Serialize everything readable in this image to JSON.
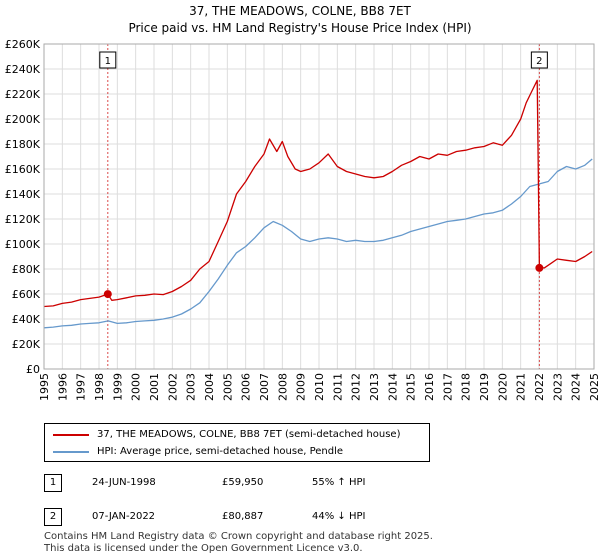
{
  "title": "37, THE MEADOWS, COLNE, BB8 7ET",
  "subtitle": "Price paid vs. HM Land Registry's House Price Index (HPI)",
  "legend": {
    "property_label": "37, THE MEADOWS, COLNE, BB8 7ET (semi-detached house)",
    "hpi_label": "HPI: Average price, semi-detached house, Pendle"
  },
  "transactions": [
    {
      "badge": "1",
      "date": "24-JUN-1998",
      "price": "£59,950",
      "hpi_change": "55% ↑ HPI"
    },
    {
      "badge": "2",
      "date": "07-JAN-2022",
      "price": "£80,887",
      "hpi_change": "44% ↓ HPI"
    }
  ],
  "footer": {
    "line1": "Contains HM Land Registry data © Crown copyright and database right 2025.",
    "line2": "This data is licensed under the Open Government Licence v3.0."
  },
  "colors": {
    "property": "#cc0000",
    "hpi": "#6699cc",
    "grid": "#dddddd",
    "plot_bg": "#ffffff",
    "marker_line": "#cc0000"
  },
  "chart_data": {
    "type": "line",
    "title": "37, THE MEADOWS, COLNE, BB8 7ET",
    "xlabel": "",
    "ylabel": "",
    "xlim": [
      1995,
      2025
    ],
    "ylim": [
      0,
      260000
    ],
    "y_ticks": [
      0,
      20000,
      40000,
      60000,
      80000,
      100000,
      120000,
      140000,
      160000,
      180000,
      200000,
      220000,
      240000,
      260000
    ],
    "y_tick_labels": [
      "£0",
      "£20K",
      "£40K",
      "£60K",
      "£80K",
      "£100K",
      "£120K",
      "£140K",
      "£160K",
      "£180K",
      "£200K",
      "£220K",
      "£240K",
      "£260K"
    ],
    "x_ticks": [
      1995,
      1996,
      1997,
      1998,
      1999,
      2000,
      2001,
      2002,
      2003,
      2004,
      2005,
      2006,
      2007,
      2008,
      2009,
      2010,
      2011,
      2012,
      2013,
      2014,
      2015,
      2016,
      2017,
      2018,
      2019,
      2020,
      2021,
      2022,
      2023,
      2024,
      2025
    ],
    "x_tick_labels": [
      "1995",
      "1996",
      "1997",
      "1998",
      "1999",
      "2000",
      "2001",
      "2002",
      "2003",
      "2004",
      "2005",
      "2006",
      "2007",
      "2008",
      "2009",
      "2010",
      "2011",
      "2012",
      "2013",
      "2014",
      "2015",
      "2016",
      "2017",
      "2018",
      "2019",
      "2020",
      "2021",
      "2022",
      "2023",
      "2024",
      "2025"
    ],
    "grid": true,
    "legend_position": "below",
    "series": [
      {
        "name": "37, THE MEADOWS, COLNE, BB8 7ET (semi-detached house)",
        "color": "#cc0000",
        "x": [
          1995.0,
          1995.5,
          1996.0,
          1996.5,
          1997.0,
          1997.5,
          1998.0,
          1998.48,
          1998.7,
          1999.0,
          1999.5,
          2000.0,
          2000.5,
          2001.0,
          2001.5,
          2002.0,
          2002.5,
          2003.0,
          2003.5,
          2004.0,
          2004.5,
          2005.0,
          2005.5,
          2006.0,
          2006.5,
          2007.0,
          2007.3,
          2007.7,
          2008.0,
          2008.3,
          2008.7,
          2009.0,
          2009.5,
          2010.0,
          2010.5,
          2011.0,
          2011.5,
          2012.0,
          2012.5,
          2013.0,
          2013.5,
          2014.0,
          2014.5,
          2015.0,
          2015.5,
          2016.0,
          2016.5,
          2017.0,
          2017.5,
          2018.0,
          2018.5,
          2019.0,
          2019.5,
          2020.0,
          2020.5,
          2021.0,
          2021.3,
          2021.6,
          2021.9,
          2022.02,
          2022.3,
          2022.7,
          2023.0,
          2023.5,
          2024.0,
          2024.5,
          2024.9
        ],
        "y": [
          50000,
          50500,
          52500,
          53500,
          55500,
          56500,
          57500,
          59950,
          55000,
          55500,
          57000,
          58500,
          59000,
          60000,
          59500,
          62000,
          66000,
          71000,
          80000,
          86000,
          102000,
          118000,
          140000,
          150000,
          162000,
          172000,
          184000,
          174000,
          182000,
          170000,
          160000,
          158000,
          160000,
          165000,
          172000,
          162000,
          158000,
          156000,
          154000,
          153000,
          154000,
          158000,
          163000,
          166000,
          170000,
          168000,
          172000,
          171000,
          174000,
          175000,
          177000,
          178000,
          181000,
          179000,
          187000,
          200000,
          213000,
          222000,
          231000,
          80887,
          81000,
          85000,
          88000,
          87000,
          86000,
          90000,
          94000
        ]
      },
      {
        "name": "HPI: Average price, semi-detached house, Pendle",
        "color": "#6699cc",
        "x": [
          1995.0,
          1995.5,
          1996.0,
          1996.5,
          1997.0,
          1997.5,
          1998.0,
          1998.5,
          1999.0,
          1999.5,
          2000.0,
          2000.5,
          2001.0,
          2001.5,
          2002.0,
          2002.5,
          2003.0,
          2003.5,
          2004.0,
          2004.5,
          2005.0,
          2005.5,
          2006.0,
          2006.5,
          2007.0,
          2007.5,
          2008.0,
          2008.5,
          2009.0,
          2009.5,
          2010.0,
          2010.5,
          2011.0,
          2011.5,
          2012.0,
          2012.5,
          2013.0,
          2013.5,
          2014.0,
          2014.5,
          2015.0,
          2015.5,
          2016.0,
          2016.5,
          2017.0,
          2017.5,
          2018.0,
          2018.5,
          2019.0,
          2019.5,
          2020.0,
          2020.5,
          2021.0,
          2021.5,
          2022.0,
          2022.5,
          2023.0,
          2023.5,
          2024.0,
          2024.5,
          2024.9
        ],
        "y": [
          33000,
          33500,
          34500,
          35000,
          36000,
          36500,
          37000,
          38500,
          36500,
          37000,
          38000,
          38500,
          39000,
          40000,
          41500,
          44000,
          48000,
          53000,
          62000,
          72000,
          83000,
          93000,
          98000,
          105000,
          113000,
          118000,
          115000,
          110000,
          104000,
          102000,
          104000,
          105000,
          104000,
          102000,
          103000,
          102000,
          102000,
          103000,
          105000,
          107000,
          110000,
          112000,
          114000,
          116000,
          118000,
          119000,
          120000,
          122000,
          124000,
          125000,
          127000,
          132000,
          138000,
          146000,
          148000,
          150000,
          158000,
          162000,
          160000,
          163000,
          168000
        ]
      }
    ],
    "markers": [
      {
        "label": "1",
        "x": 1998.48,
        "y": 59950
      },
      {
        "label": "2",
        "x": 2022.02,
        "y": 80887
      }
    ],
    "future_shade_start": 2025
  }
}
